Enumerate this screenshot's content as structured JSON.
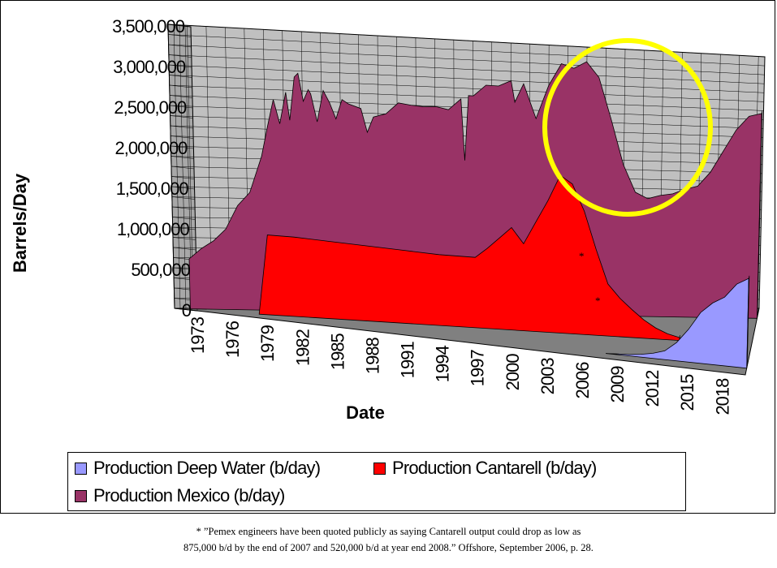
{
  "chart_data": {
    "type": "area",
    "render": "3d",
    "xlabel": "Date",
    "ylabel": "Barrels/Day",
    "xlim": [
      1973,
      2020
    ],
    "ylim": [
      0,
      3500000
    ],
    "y_ticks": [
      "0",
      "500,000",
      "1,000,000",
      "1,500,000",
      "2,000,000",
      "2,500,000",
      "3,000,000",
      "3,500,000"
    ],
    "x_ticks": [
      "1973",
      "1976",
      "1979",
      "1982",
      "1985",
      "1988",
      "1991",
      "1994",
      "1997",
      "2000",
      "2003",
      "2006",
      "2009",
      "2012",
      "2015",
      "2018"
    ],
    "grid": true,
    "legend_position": "bottom",
    "series": [
      {
        "name": "Production Mexico (b/day)",
        "color": "#993366",
        "points": [
          [
            1974,
            620000
          ],
          [
            1975,
            750000
          ],
          [
            1976,
            850000
          ],
          [
            1977,
            1000000
          ],
          [
            1978,
            1300000
          ],
          [
            1979,
            1470000
          ],
          [
            1980,
            1930000
          ],
          [
            1980.5,
            2300000
          ],
          [
            1981,
            2650000
          ],
          [
            1981.5,
            2350000
          ],
          [
            1982,
            2750000
          ],
          [
            1982.3,
            2400000
          ],
          [
            1982.7,
            2950000
          ],
          [
            1983,
            3000000
          ],
          [
            1983.4,
            2650000
          ],
          [
            1983.8,
            2800000
          ],
          [
            1984,
            2750000
          ],
          [
            1984.5,
            2400000
          ],
          [
            1985,
            2800000
          ],
          [
            1985.5,
            2650000
          ],
          [
            1986,
            2450000
          ],
          [
            1986.5,
            2700000
          ],
          [
            1987,
            2650000
          ],
          [
            1988,
            2600000
          ],
          [
            1988.5,
            2300000
          ],
          [
            1989,
            2500000
          ],
          [
            1990,
            2550000
          ],
          [
            1991,
            2700000
          ],
          [
            1992,
            2680000
          ],
          [
            1993,
            2670000
          ],
          [
            1994,
            2680000
          ],
          [
            1995,
            2650000
          ],
          [
            1996,
            2800000
          ],
          [
            1996.3,
            2000000
          ],
          [
            1996.6,
            2850000
          ],
          [
            1997,
            2850000
          ],
          [
            1998,
            3000000
          ],
          [
            1999,
            3000000
          ],
          [
            2000,
            3080000
          ],
          [
            2000.3,
            2800000
          ],
          [
            2001,
            3050000
          ],
          [
            2002,
            2600000
          ],
          [
            2003,
            3050000
          ],
          [
            2004,
            3350000
          ],
          [
            2005,
            3300000
          ],
          [
            2006,
            3400000
          ],
          [
            2007,
            3200000
          ],
          [
            2008,
            2650000
          ],
          [
            2009,
            2050000
          ],
          [
            2010,
            1680000
          ],
          [
            2011,
            1600000
          ],
          [
            2012,
            1650000
          ],
          [
            2013,
            1680000
          ],
          [
            2014,
            1750000
          ],
          [
            2015,
            1800000
          ],
          [
            2016,
            2000000
          ],
          [
            2017,
            2300000
          ],
          [
            2018,
            2600000
          ],
          [
            2019,
            2800000
          ],
          [
            2020,
            2850000
          ]
        ]
      },
      {
        "name": "Production Cantarell (b/day)",
        "color": "#ff0000",
        "points": [
          [
            1979,
            0
          ],
          [
            1979.8,
            1000000
          ],
          [
            1982,
            1000000
          ],
          [
            1985,
            980000
          ],
          [
            1988,
            960000
          ],
          [
            1991,
            940000
          ],
          [
            1994,
            920000
          ],
          [
            1997,
            920000
          ],
          [
            1998,
            1050000
          ],
          [
            1999,
            1200000
          ],
          [
            2000,
            1350000
          ],
          [
            2001,
            1150000
          ],
          [
            2002,
            1450000
          ],
          [
            2003,
            1750000
          ],
          [
            2004,
            2100000
          ],
          [
            2005,
            2000000
          ],
          [
            2006,
            1650000
          ],
          [
            2007,
            1150000
          ],
          [
            2008,
            700000
          ],
          [
            2009,
            520000
          ],
          [
            2010,
            380000
          ],
          [
            2011,
            250000
          ],
          [
            2012,
            150000
          ],
          [
            2013,
            80000
          ],
          [
            2014,
            40000
          ]
        ]
      },
      {
        "name": "Production Deep Water (b/day)",
        "color": "#9999ff",
        "points": [
          [
            2008,
            0
          ],
          [
            2009,
            10000
          ],
          [
            2010,
            20000
          ],
          [
            2011,
            40000
          ],
          [
            2012,
            70000
          ],
          [
            2013,
            120000
          ],
          [
            2014,
            250000
          ],
          [
            2015,
            450000
          ],
          [
            2016,
            700000
          ],
          [
            2017,
            850000
          ],
          [
            2018,
            950000
          ],
          [
            2019,
            1150000
          ],
          [
            2020,
            1250000
          ]
        ]
      }
    ],
    "annotation": "*",
    "footnote_lines": [
      "* ”Pemex engineers have been quoted publicly as saying Cantarell output could drop as low as",
      "875,000 b/d by the end of 2007 and 520,000 b/d at year end 2008.” Offshore, September 2006, p. 28."
    ]
  }
}
